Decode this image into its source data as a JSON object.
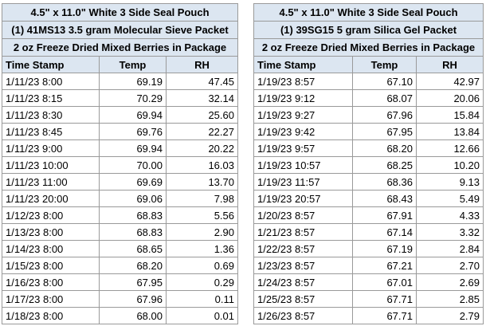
{
  "tables": [
    {
      "titles": [
        "4.5\" x 11.0\" White 3 Side Seal Pouch",
        "(1) 41MS13 3.5 gram Molecular Sieve Packet",
        "2 oz Freeze Dried Mixed Berries in Package"
      ],
      "columns": [
        "Time Stamp",
        "Temp",
        "RH"
      ],
      "rows": [
        [
          "1/11/23 8:00",
          "69.19",
          "47.45"
        ],
        [
          "1/11/23 8:15",
          "70.29",
          "32.14"
        ],
        [
          "1/11/23 8:30",
          "69.94",
          "25.60"
        ],
        [
          "1/11/23 8:45",
          "69.76",
          "22.27"
        ],
        [
          "1/11/23 9:00",
          "69.94",
          "20.22"
        ],
        [
          "1/11/23 10:00",
          "70.00",
          "16.03"
        ],
        [
          "1/11/23 11:00",
          "69.69",
          "13.70"
        ],
        [
          "1/11/23 20:00",
          "69.06",
          "7.98"
        ],
        [
          "1/12/23 8:00",
          "68.83",
          "5.56"
        ],
        [
          "1/13/23 8:00",
          "68.83",
          "2.90"
        ],
        [
          "1/14/23 8:00",
          "68.65",
          "1.36"
        ],
        [
          "1/15/23 8:00",
          "68.20",
          "0.69"
        ],
        [
          "1/16/23 8:00",
          "67.95",
          "0.29"
        ],
        [
          "1/17/23 8:00",
          "67.96",
          "0.11"
        ],
        [
          "1/18/23 8:00",
          "68.00",
          "0.01"
        ]
      ]
    },
    {
      "titles": [
        "4.5\" x 11.0\" White 3 Side Seal Pouch",
        "(1) 39SG15 5 gram Silica Gel Packet",
        "2 oz Freeze Dried Mixed Berries in Package"
      ],
      "columns": [
        "Time Stamp",
        "Temp",
        "RH"
      ],
      "rows": [
        [
          "1/19/23 8:57",
          "67.10",
          "42.97"
        ],
        [
          "1/19/23 9:12",
          "68.07",
          "20.06"
        ],
        [
          "1/19/23 9:27",
          "67.96",
          "15.84"
        ],
        [
          "1/19/23 9:42",
          "67.95",
          "13.84"
        ],
        [
          "1/19/23 9:57",
          "68.20",
          "12.66"
        ],
        [
          "1/19/23 10:57",
          "68.25",
          "10.20"
        ],
        [
          "1/19/23 11:57",
          "68.36",
          "9.13"
        ],
        [
          "1/19/23 20:57",
          "68.43",
          "5.49"
        ],
        [
          "1/20/23 8:57",
          "67.91",
          "4.33"
        ],
        [
          "1/21/23 8:57",
          "67.14",
          "3.32"
        ],
        [
          "1/22/23 8:57",
          "67.19",
          "2.84"
        ],
        [
          "1/23/23 8:57",
          "67.21",
          "2.70"
        ],
        [
          "1/24/23 8:57",
          "67.01",
          "2.69"
        ],
        [
          "1/25/23 8:57",
          "67.71",
          "2.85"
        ],
        [
          "1/26/23 8:57",
          "67.71",
          "2.79"
        ]
      ]
    }
  ]
}
